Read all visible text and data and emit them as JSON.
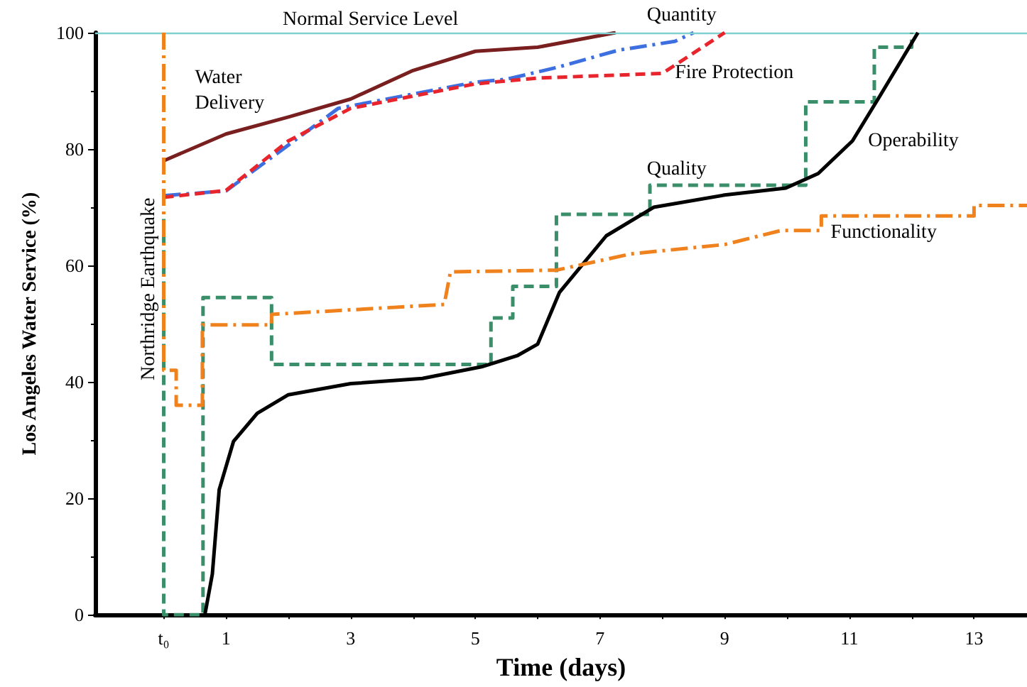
{
  "chart_data": {
    "type": "line",
    "xlabel": "Time (days)",
    "ylabel": "Los Angeles Water Service (%)",
    "xlim": [
      -1.1,
      13.85
    ],
    "ylim": [
      0,
      100
    ],
    "xticks": [
      {
        "value": 0,
        "label": "t₀"
      },
      1,
      {
        "value": 2,
        "label": null
      },
      3,
      {
        "value": 4,
        "label": null
      },
      5,
      {
        "value": 6,
        "label": null
      },
      7,
      {
        "value": 8,
        "label": null
      },
      9,
      {
        "value": 10,
        "label": null
      },
      11,
      {
        "value": 12,
        "label": null
      },
      13
    ],
    "yticks": [
      0,
      20,
      40,
      60,
      80,
      100
    ],
    "grid": false,
    "legend": false,
    "marker": "none",
    "series": [
      {
        "name": "Water\nDelivery",
        "color": "#7a1f1f",
        "line_style": "solid",
        "x": [
          0,
          1,
          2,
          3,
          4,
          5,
          6,
          7.25
        ],
        "values": [
          78,
          82.6,
          85.5,
          88.6,
          93.5,
          96.8,
          97.5,
          100
        ]
      },
      {
        "name": "Quantity",
        "color": "#3d6fe0",
        "line_style": "dashdot",
        "x": [
          0,
          1,
          2.8,
          5,
          5.5,
          6.3,
          7.3,
          8.2,
          8.5
        ],
        "values": [
          72,
          72.8,
          87,
          91.5,
          92,
          94,
          97,
          98.5,
          100
        ]
      },
      {
        "name": "Fire Protection",
        "color": "#e8242c",
        "line_style": "dashed",
        "x": [
          0,
          1,
          2,
          3,
          5,
          6,
          8,
          9
        ],
        "values": [
          71.7,
          72.9,
          81.4,
          87,
          91.2,
          92.2,
          93,
          100
        ]
      },
      {
        "name": "Quality",
        "color": "#3a8f6a",
        "line_style": "dashed",
        "x": [
          0,
          0,
          0.63,
          0.63,
          1.73,
          1.73,
          5.25,
          5.25,
          5.6,
          5.6,
          6.3,
          6.3,
          7.8,
          7.8,
          10.3,
          10.3,
          11.4,
          11.4,
          12,
          12
        ],
        "values": [
          68,
          0,
          0,
          54.5,
          54.5,
          43,
          43,
          51,
          51,
          56.4,
          56.4,
          68.8,
          68.8,
          73.8,
          73.8,
          88.1,
          88.1,
          97.5,
          97.5,
          100
        ]
      },
      {
        "name": "Operability",
        "color": "#000000",
        "line_style": "solid",
        "x": [
          0.66,
          0.78,
          0.89,
          1.12,
          1.5,
          2,
          3,
          4.15,
          5.1,
          5.67,
          6,
          6.35,
          7.1,
          7.86,
          9,
          9.98,
          10.5,
          11.05,
          11.5,
          12.1
        ],
        "values": [
          0,
          7,
          21.5,
          29.8,
          34.6,
          37.8,
          39.7,
          40.6,
          42.6,
          44.5,
          46.5,
          55.4,
          65.1,
          70,
          72.1,
          73.3,
          75.8,
          81.4,
          89.3,
          100
        ]
      },
      {
        "name": "Functionality",
        "color": "#f0821e",
        "line_style": "dashdot",
        "x": [
          0,
          0,
          0.2,
          0.2,
          0.62,
          0.62,
          1.73,
          1.73,
          4.5,
          4.6,
          6.3,
          7.5,
          9,
          9.9,
          10.55,
          10.55,
          13,
          13,
          13.85
        ],
        "values": [
          100,
          42,
          42,
          36,
          36,
          49.8,
          49.8,
          51.6,
          53.3,
          58.9,
          59.2,
          62,
          63.6,
          66,
          66,
          68.5,
          68.5,
          70.3,
          70.3
        ]
      }
    ],
    "ref_lines": [
      {
        "axis": "y",
        "value": 100,
        "label": "Normal Service Level",
        "color": "#7fd0d0",
        "line_style": "solid"
      }
    ],
    "annotations": [
      "Northridge Earthquake"
    ]
  }
}
